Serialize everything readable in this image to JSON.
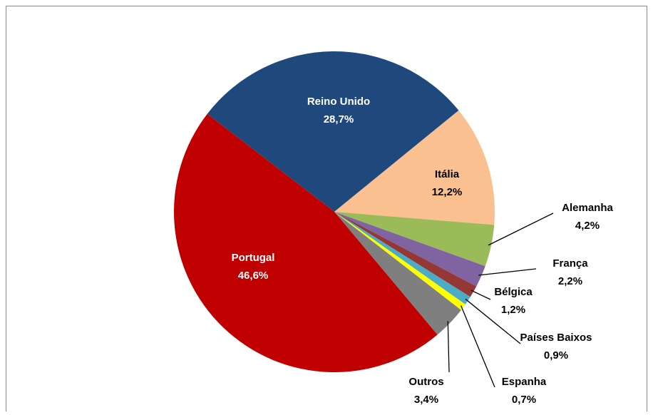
{
  "chart_data": {
    "type": "pie",
    "categories": [
      "Reino Unido",
      "Itália",
      "Alemanha",
      "França",
      "Bélgica",
      "Países Baixos",
      "Espanha",
      "Outros",
      "Portugal"
    ],
    "values": [
      28.7,
      12.2,
      4.2,
      2.2,
      1.2,
      0.9,
      0.7,
      3.4,
      46.6
    ],
    "value_labels": [
      "28,7%",
      "12,2%",
      "4,2%",
      "2,2%",
      "1,2%",
      "0,9%",
      "0,7%",
      "3,4%",
      "46,6%"
    ],
    "colors": [
      "#1f497d",
      "#fac090",
      "#9bbb59",
      "#8064a2",
      "#953735",
      "#4bacc6",
      "#ffff00",
      "#7f7f7f",
      "#c00000"
    ]
  }
}
